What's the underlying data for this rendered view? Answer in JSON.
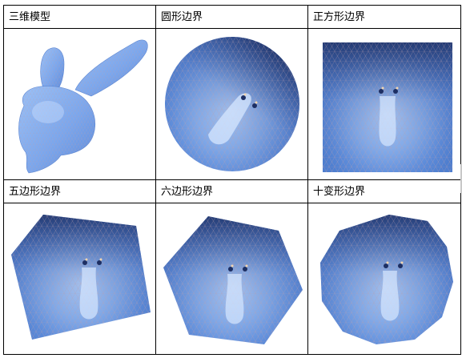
{
  "table": {
    "row1": {
      "labels": [
        "三维模型",
        "圆形边界",
        "正方形边界"
      ]
    },
    "row2": {
      "labels": [
        "五边形边界",
        "六边形边界",
        "十变形边界"
      ]
    }
  },
  "colors": {
    "surface_light": "#9ec3f5",
    "surface_mid": "#6d9be3",
    "surface_dark": "#27427e",
    "mesh_line": "#c7a3a0",
    "highlight": "#d7e8ff",
    "border": "#000000"
  },
  "icons": [
    "bunny-3d-model",
    "circle-boundary-mesh",
    "square-boundary-mesh",
    "pentagon-boundary-mesh",
    "hexagon-boundary-mesh",
    "decagon-boundary-mesh"
  ]
}
